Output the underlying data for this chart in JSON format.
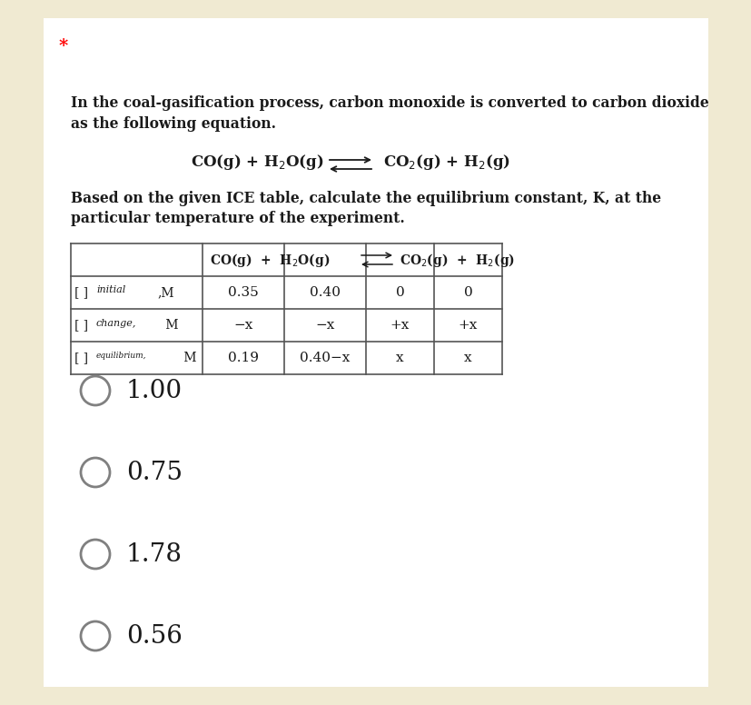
{
  "background_color": "#f0ead2",
  "page_bg": "#ffffff",
  "star_text": "*",
  "intro_line1": "In the coal-gasification process, carbon monoxide is converted to carbon dioxide",
  "intro_line2": "as the following equation.",
  "based_line1": "Based on the given ICE table, calculate the equilibrium constant, K, at the",
  "based_line2": "particular temperature of the experiment.",
  "options": [
    "1.00",
    "0.75",
    "1.78",
    "0.56"
  ],
  "circle_color": "#808080",
  "text_color": "#1a1a1a",
  "table_border_color": "#555555"
}
